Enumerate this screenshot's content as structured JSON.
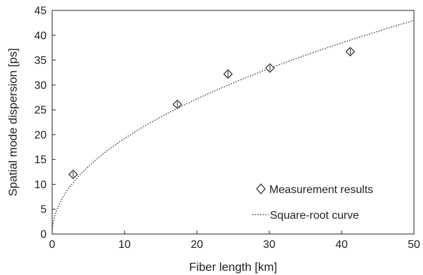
{
  "chart_data": {
    "type": "scatter",
    "xlabel": "Fiber length [km]",
    "ylabel": "Spatial mode dispersion [ps]",
    "xlim": [
      0,
      50
    ],
    "ylim": [
      0,
      45
    ],
    "x_ticks": [
      0,
      10,
      20,
      30,
      40,
      50
    ],
    "y_ticks": [
      0,
      5,
      10,
      15,
      20,
      25,
      30,
      35,
      40,
      45
    ],
    "grid": false,
    "legend_position": "bottom-right",
    "series": [
      {
        "name": "Measurement results",
        "marker": "diamond",
        "points": [
          {
            "x": 2.9,
            "y": 12.0
          },
          {
            "x": 17.3,
            "y": 26.1
          },
          {
            "x": 24.3,
            "y": 32.2
          },
          {
            "x": 30.1,
            "y": 33.4
          },
          {
            "x": 41.2,
            "y": 36.7
          }
        ]
      },
      {
        "name": "Square-root curve",
        "style": "dotted",
        "function": "sqrt",
        "coefficient": 6.08
      }
    ]
  }
}
